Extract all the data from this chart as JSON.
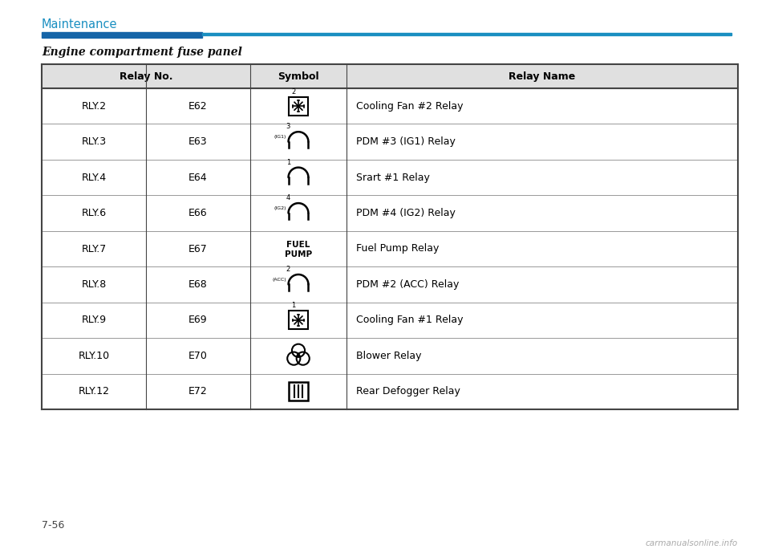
{
  "page_title": "Maintenance",
  "section_title": "Engine compartment fuse panel",
  "page_number": "7-56",
  "header_bg": "#e0e0e0",
  "title_color": "#1a8fc1",
  "thick_line_color": "#1565a8",
  "thin_line_color": "#1a8fc1",
  "table_border_color": "#444444",
  "row_line_color": "#999999",
  "rows": [
    {
      "relay_no": "RLY.2",
      "code": "E62",
      "symbol": "fan_box_2",
      "name": "Cooling Fan #2 Relay"
    },
    {
      "relay_no": "RLY.3",
      "code": "E63",
      "symbol": "relay_ig1_3",
      "name": "PDM #3 (IG1) Relay"
    },
    {
      "relay_no": "RLY.4",
      "code": "E64",
      "symbol": "relay_1",
      "name": "Srart #1 Relay"
    },
    {
      "relay_no": "RLY.6",
      "code": "E66",
      "symbol": "relay_ig2_4",
      "name": "PDM #4 (IG2) Relay"
    },
    {
      "relay_no": "RLY.7",
      "code": "E67",
      "symbol": "fuel_pump",
      "name": "Fuel Pump Relay"
    },
    {
      "relay_no": "RLY.8",
      "code": "E68",
      "symbol": "relay_acc_2",
      "name": "PDM #2 (ACC) Relay"
    },
    {
      "relay_no": "RLY.9",
      "code": "E69",
      "symbol": "fan_box_1",
      "name": "Cooling Fan #1 Relay"
    },
    {
      "relay_no": "RLY.10",
      "code": "E70",
      "symbol": "blower",
      "name": "Blower Relay"
    },
    {
      "relay_no": "RLY.12",
      "code": "E72",
      "symbol": "defogger",
      "name": "Rear Defogger Relay"
    }
  ],
  "watermark": "carmanualsonline.info"
}
